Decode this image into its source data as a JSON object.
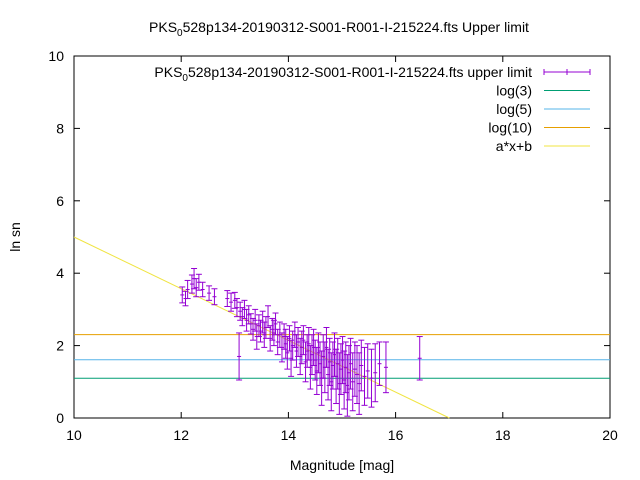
{
  "chart_data": {
    "type": "scatter",
    "title_parts": [
      "PKS",
      "0",
      "528p134-20190312-S001-R001-I-215224.fts Upper limit"
    ],
    "xlabel": "Magnitude [mag]",
    "ylabel": "ln sn",
    "xlim": [
      10,
      20
    ],
    "ylim": [
      0,
      10
    ],
    "x_ticks": [
      "10",
      "12",
      "14",
      "16",
      "18",
      "20"
    ],
    "y_ticks": [
      "0",
      "2",
      "4",
      "6",
      "8",
      "10"
    ],
    "grid": false,
    "legend_position": "top-right",
    "legend": [
      {
        "key": "data",
        "label_parts": [
          "PKS",
          "0",
          "528p134-20190312-S001-R001-I-215224.fts upper limit"
        ]
      },
      {
        "key": "log3",
        "label": "log(3)"
      },
      {
        "key": "log5",
        "label": "log(5)"
      },
      {
        "key": "log10",
        "label": "log(10)"
      },
      {
        "key": "fit",
        "label": "a*x+b"
      }
    ],
    "colors": {
      "data": "#9400d3",
      "log3": "#009e73",
      "log5": "#56b4e9",
      "log10": "#e69f00",
      "fit": "#f0e442",
      "axes": "#000000"
    },
    "hlines": [
      {
        "key": "log3",
        "y": 1.0986
      },
      {
        "key": "log5",
        "y": 1.6094
      },
      {
        "key": "log10",
        "y": 2.3026
      }
    ],
    "fit_line": {
      "a": -0.714,
      "b": 12.14
    },
    "series": [
      {
        "key": "data",
        "points": [
          [
            12.02,
            3.4,
            0.22
          ],
          [
            12.08,
            3.3,
            0.2
          ],
          [
            12.12,
            3.55,
            0.25
          ],
          [
            12.2,
            3.7,
            0.25
          ],
          [
            12.24,
            3.85,
            0.28
          ],
          [
            12.28,
            3.6,
            0.25
          ],
          [
            12.33,
            3.75,
            0.22
          ],
          [
            12.4,
            3.55,
            0.2
          ],
          [
            12.52,
            3.45,
            0.2
          ],
          [
            12.62,
            3.35,
            0.22
          ],
          [
            12.86,
            3.3,
            0.22
          ],
          [
            12.93,
            3.2,
            0.25
          ],
          [
            13.0,
            3.25,
            0.22
          ],
          [
            13.04,
            3.05,
            0.25
          ],
          [
            13.08,
            1.7,
            0.65
          ],
          [
            13.1,
            2.95,
            0.25
          ],
          [
            13.14,
            2.8,
            0.25
          ],
          [
            13.18,
            3.0,
            0.25
          ],
          [
            13.22,
            2.7,
            0.3
          ],
          [
            13.26,
            2.85,
            0.25
          ],
          [
            13.3,
            2.6,
            0.28
          ],
          [
            13.34,
            2.45,
            0.3
          ],
          [
            13.38,
            2.7,
            0.3
          ],
          [
            13.41,
            2.25,
            0.35
          ],
          [
            13.45,
            2.55,
            0.3
          ],
          [
            13.48,
            2.4,
            0.3
          ],
          [
            13.52,
            2.65,
            0.3
          ],
          [
            13.55,
            2.3,
            0.35
          ],
          [
            13.58,
            2.5,
            0.3
          ],
          [
            13.62,
            2.8,
            0.3
          ],
          [
            13.66,
            2.2,
            0.35
          ],
          [
            13.7,
            2.45,
            0.3
          ],
          [
            13.73,
            2.35,
            0.35
          ],
          [
            13.76,
            2.6,
            0.3
          ],
          [
            13.8,
            2.1,
            0.35
          ],
          [
            13.84,
            2.3,
            0.35
          ],
          [
            13.88,
            1.95,
            0.4
          ],
          [
            13.92,
            2.25,
            0.35
          ],
          [
            13.95,
            2.05,
            0.4
          ],
          [
            13.98,
            1.8,
            0.45
          ],
          [
            14.02,
            2.2,
            0.35
          ],
          [
            14.05,
            1.65,
            0.5
          ],
          [
            14.08,
            2.0,
            0.4
          ],
          [
            14.12,
            2.3,
            0.35
          ],
          [
            14.15,
            1.85,
            0.45
          ],
          [
            14.18,
            2.1,
            0.4
          ],
          [
            14.22,
            1.7,
            0.5
          ],
          [
            14.25,
            1.95,
            0.45
          ],
          [
            14.28,
            2.15,
            0.4
          ],
          [
            14.32,
            1.55,
            0.55
          ],
          [
            14.35,
            1.85,
            0.45
          ],
          [
            14.38,
            2.05,
            0.45
          ],
          [
            14.41,
            1.4,
            0.6
          ],
          [
            14.44,
            1.75,
            0.55
          ],
          [
            14.47,
            1.95,
            0.5
          ],
          [
            14.5,
            1.6,
            0.55
          ],
          [
            14.53,
            1.3,
            0.65
          ],
          [
            14.56,
            1.8,
            0.55
          ],
          [
            14.59,
            1.5,
            0.6
          ],
          [
            14.62,
            1.1,
            0.75
          ],
          [
            14.65,
            1.7,
            0.6
          ],
          [
            14.68,
            1.4,
            0.7
          ],
          [
            14.71,
            1.95,
            0.55
          ],
          [
            14.74,
            1.2,
            0.7
          ],
          [
            14.77,
            1.55,
            0.65
          ],
          [
            14.8,
            1.0,
            0.8
          ],
          [
            14.83,
            1.45,
            0.65
          ],
          [
            14.86,
            1.75,
            0.6
          ],
          [
            14.89,
            1.15,
            0.75
          ],
          [
            14.92,
            1.5,
            0.7
          ],
          [
            14.95,
            0.95,
            0.85
          ],
          [
            14.98,
            1.35,
            0.7
          ],
          [
            15.01,
            1.6,
            0.65
          ],
          [
            15.04,
            1.05,
            0.8
          ],
          [
            15.07,
            1.4,
            0.7
          ],
          [
            15.1,
            0.9,
            0.85
          ],
          [
            15.13,
            1.25,
            0.75
          ],
          [
            15.16,
            1.5,
            0.7
          ],
          [
            15.2,
            1.0,
            0.8
          ],
          [
            15.24,
            1.35,
            0.75
          ],
          [
            15.28,
            1.2,
            0.8
          ],
          [
            15.32,
            0.95,
            0.85
          ],
          [
            15.36,
            1.45,
            0.7
          ],
          [
            15.42,
            1.15,
            0.8
          ],
          [
            15.48,
            1.3,
            0.75
          ],
          [
            15.55,
            1.1,
            0.8
          ],
          [
            15.62,
            1.25,
            0.8
          ],
          [
            15.7,
            1.5,
            0.6
          ],
          [
            15.82,
            1.4,
            0.7
          ],
          [
            16.45,
            1.65,
            0.6
          ]
        ]
      }
    ]
  }
}
